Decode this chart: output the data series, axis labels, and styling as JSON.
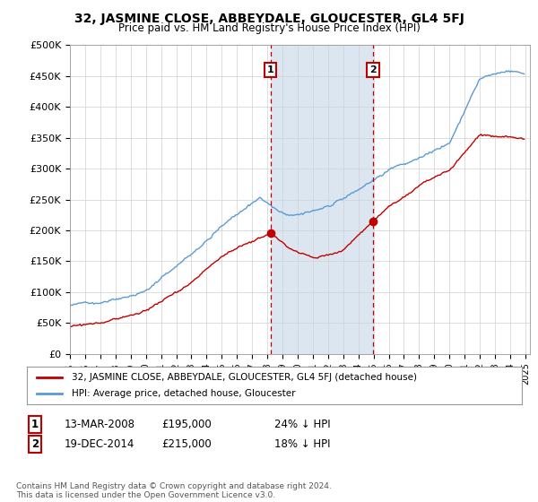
{
  "title": "32, JASMINE CLOSE, ABBEYDALE, GLOUCESTER, GL4 5FJ",
  "subtitle": "Price paid vs. HM Land Registry's House Price Index (HPI)",
  "ylim": [
    0,
    500000
  ],
  "yticks": [
    0,
    50000,
    100000,
    150000,
    200000,
    250000,
    300000,
    350000,
    400000,
    450000,
    500000
  ],
  "ytick_labels": [
    "£0",
    "£50K",
    "£100K",
    "£150K",
    "£200K",
    "£250K",
    "£300K",
    "£350K",
    "£400K",
    "£450K",
    "£500K"
  ],
  "hpi_color": "#5b9bd5",
  "price_color": "#c00000",
  "sale1_x": 2008.208,
  "sale1_price": 195000,
  "sale2_x": 2014.958,
  "sale2_price": 215000,
  "legend_price_label": "32, JASMINE CLOSE, ABBEYDALE, GLOUCESTER, GL4 5FJ (detached house)",
  "legend_hpi_label": "HPI: Average price, detached house, Gloucester",
  "sale1_text": "13-MAR-2008",
  "sale1_amount": "£195,000",
  "sale1_pct": "24% ↓ HPI",
  "sale2_text": "19-DEC-2014",
  "sale2_amount": "£215,000",
  "sale2_pct": "18% ↓ HPI",
  "footnote": "Contains HM Land Registry data © Crown copyright and database right 2024.\nThis data is licensed under the Open Government Licence v3.0.",
  "background_color": "#ffffff",
  "shaded_color": "#dce6f1"
}
